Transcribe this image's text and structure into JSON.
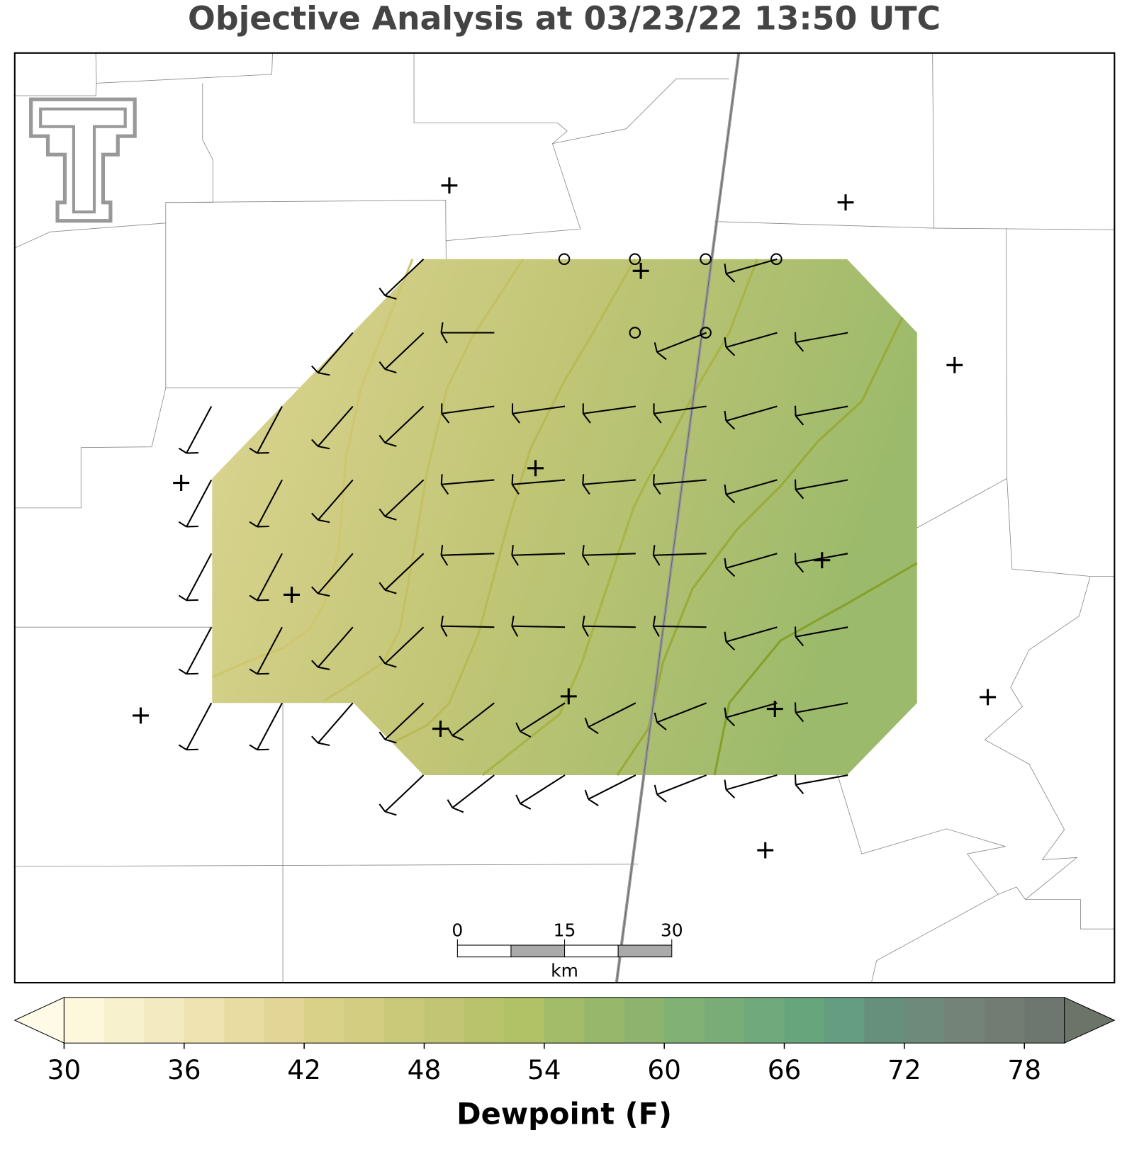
{
  "chart_data": {
    "type": "objective-analysis-map",
    "title": "Objective Analysis at 03/23/22 13:50 UTC",
    "scale_bar": {
      "ticks": [
        0,
        15,
        30
      ],
      "unit": "km"
    },
    "colorbar": {
      "label": "Dewpoint (F)",
      "range": [
        30,
        80
      ],
      "ticks": [
        30,
        36,
        42,
        48,
        54,
        60,
        66,
        72,
        78
      ],
      "under_color": "#fffbe6",
      "over_color": "#6c746a",
      "colors": [
        "#fdf8dc",
        "#f8f1cd",
        "#f3eac0",
        "#eee3b1",
        "#e8dca2",
        "#e2d595",
        "#dad188",
        "#d2cd80",
        "#cac97a",
        "#c2c674",
        "#b9c36c",
        "#b0c166",
        "#a3bc69",
        "#97b86b",
        "#8cb46f",
        "#82b174",
        "#79ad78",
        "#70a97a",
        "#67a57d",
        "#649d80",
        "#668f7c",
        "#6d8b7b",
        "#738378",
        "#717d73",
        "#6d776f"
      ]
    }
  }
}
